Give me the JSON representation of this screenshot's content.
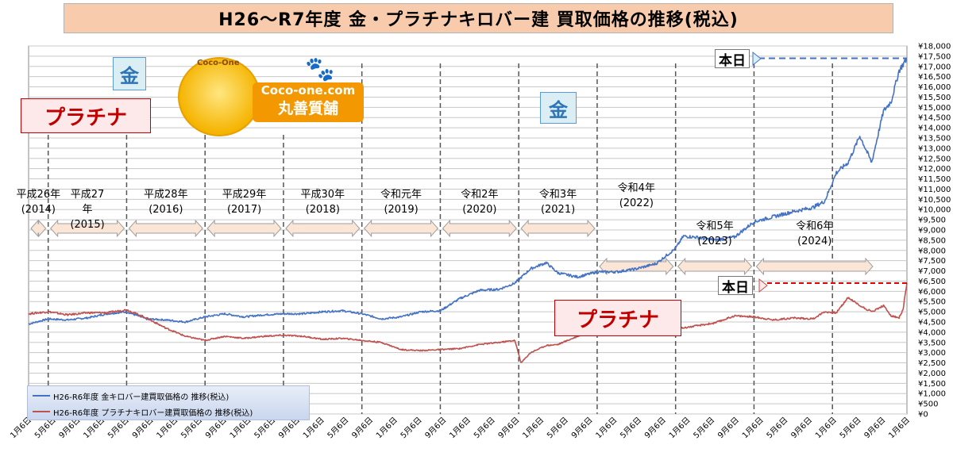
{
  "title": "H26〜R7年度  金・プラチナキロバー建 買取価格の推移(税込)",
  "annotations": {
    "gold_label_1": "金",
    "gold_label_2": "金",
    "platinum_label_1": "プラチナ",
    "platinum_label_2": "プラチナ",
    "today_gold": "本日",
    "today_platinum": "本日"
  },
  "logo": {
    "top_text": "Coco-One",
    "line1": "Coco-one.com",
    "line2": "丸善質舗",
    "paw_icon": "paw-icon"
  },
  "legend": {
    "gold": "H26-R6年度  金キロバー建買取価格の 推移(税込)",
    "platinum": "H26-R6年度  プラチナキロバー建買取価格の 推移(税込)"
  },
  "eras": [
    {
      "name": "平成26年",
      "year": "(2014)"
    },
    {
      "name": "平成27\n年",
      "year": "(2015)"
    },
    {
      "name": "平成28年",
      "year": "(2016)"
    },
    {
      "name": "平成29年",
      "year": "(2017)"
    },
    {
      "name": "平成30年",
      "year": "(2018)"
    },
    {
      "name": "令和元年",
      "year": "(2019)"
    },
    {
      "name": "令和2年",
      "year": "(2020)"
    },
    {
      "name": "令和3年",
      "year": "(2021)"
    },
    {
      "name": "令和4年",
      "year": "(2022)"
    },
    {
      "name": "令和5年",
      "year": "(2023)"
    },
    {
      "name": "令和6年",
      "year": "(2024)"
    }
  ],
  "colors": {
    "gold": "#4472c4",
    "platinum": "#c0504d",
    "title_bg": "#f8cbad",
    "arrow_fill": "#fbe5d6",
    "arrow_stroke": "#9e9e9e"
  },
  "chart_data": {
    "type": "line",
    "title": "H26〜R7年度  金・プラチナキロバー建 買取価格の推移(税込)",
    "ylim": [
      0,
      18000
    ],
    "y_step": 500,
    "y_tick_format": "¥{v}",
    "grid": true,
    "legend_position": "bottom-left",
    "x_tick_labels": [
      "1月6日",
      "5月6日",
      "9月6日",
      "1月6日",
      "5月6日",
      "9月6日",
      "1月6日",
      "5月6日",
      "9月6日",
      "1月6日",
      "5月6日",
      "9月6日",
      "1月6日",
      "5月6日",
      "9月6日",
      "1月6日",
      "5月6日",
      "9月6日",
      "1月6日",
      "5月6日",
      "9月6日",
      "1月6日",
      "5月6日",
      "9月6日",
      "1月6日",
      "5月6日",
      "9月6日",
      "1月6日",
      "5月6日",
      "9月6日",
      "1月6日",
      "5月6日",
      "9月6日",
      "1月6日",
      "5月6日",
      "9月6日",
      "1月6日"
    ],
    "x_range": [
      2014.0,
      2025.2
    ],
    "year_boundaries": [
      2014.25,
      2015.25,
      2016.25,
      2017.25,
      2018.25,
      2019.25,
      2020.25,
      2021.25,
      2022.25,
      2023.25,
      2024.25
    ],
    "series": [
      {
        "name": "H26-R6年度  金キロバー建買取価格の 推移(税込)",
        "x": [
          2014.0,
          2014.25,
          2014.5,
          2014.75,
          2015.0,
          2015.25,
          2015.5,
          2015.75,
          2016.0,
          2016.25,
          2016.5,
          2016.75,
          2017.0,
          2017.25,
          2017.5,
          2017.75,
          2018.0,
          2018.25,
          2018.5,
          2018.75,
          2019.0,
          2019.25,
          2019.5,
          2019.75,
          2020.0,
          2020.2,
          2020.4,
          2020.6,
          2020.75,
          2021.0,
          2021.25,
          2021.5,
          2021.75,
          2022.0,
          2022.25,
          2022.35,
          2022.5,
          2022.75,
          2023.0,
          2023.25,
          2023.5,
          2023.75,
          2024.0,
          2024.15,
          2024.3,
          2024.45,
          2024.6,
          2024.75,
          2024.9,
          2025.0,
          2025.1,
          2025.2
        ],
        "y": [
          4400,
          4650,
          4600,
          4700,
          4900,
          5000,
          4650,
          4600,
          4500,
          4750,
          4900,
          4750,
          4850,
          4900,
          4900,
          5000,
          5050,
          4900,
          4650,
          4750,
          5000,
          5050,
          5650,
          6050,
          6100,
          6400,
          7100,
          7400,
          6900,
          6700,
          6950,
          6950,
          7100,
          7350,
          8100,
          8700,
          8650,
          8500,
          8650,
          9400,
          9650,
          9900,
          10100,
          10400,
          11800,
          12300,
          13600,
          12300,
          14800,
          15300,
          16800,
          17400
        ]
      },
      {
        "name": "H26-R6年度  プラチナキロバー建買取価格の 推移(税込)",
        "x": [
          2014.0,
          2014.25,
          2014.5,
          2014.75,
          2015.0,
          2015.25,
          2015.5,
          2015.75,
          2016.0,
          2016.25,
          2016.5,
          2016.75,
          2017.0,
          2017.25,
          2017.5,
          2017.75,
          2018.0,
          2018.25,
          2018.5,
          2018.75,
          2019.0,
          2019.25,
          2019.5,
          2019.75,
          2020.0,
          2020.2,
          2020.28,
          2020.4,
          2020.6,
          2020.75,
          2021.0,
          2021.25,
          2021.5,
          2021.75,
          2022.0,
          2022.25,
          2022.5,
          2022.75,
          2023.0,
          2023.25,
          2023.5,
          2023.75,
          2024.0,
          2024.15,
          2024.3,
          2024.45,
          2024.6,
          2024.75,
          2024.9,
          2025.0,
          2025.1,
          2025.15,
          2025.2
        ],
        "y": [
          4900,
          5000,
          4850,
          4950,
          4950,
          5100,
          4700,
          4200,
          3800,
          3600,
          3800,
          3700,
          3800,
          3850,
          3800,
          3650,
          3700,
          3600,
          3500,
          3150,
          3100,
          3150,
          3200,
          3400,
          3500,
          3600,
          2500,
          3000,
          3350,
          3400,
          3800,
          4250,
          4350,
          3950,
          4000,
          4150,
          4300,
          4450,
          4800,
          4750,
          4600,
          4700,
          4650,
          5000,
          4950,
          5700,
          5300,
          5000,
          5300,
          4800,
          4700,
          5100,
          6400
        ]
      }
    ]
  }
}
